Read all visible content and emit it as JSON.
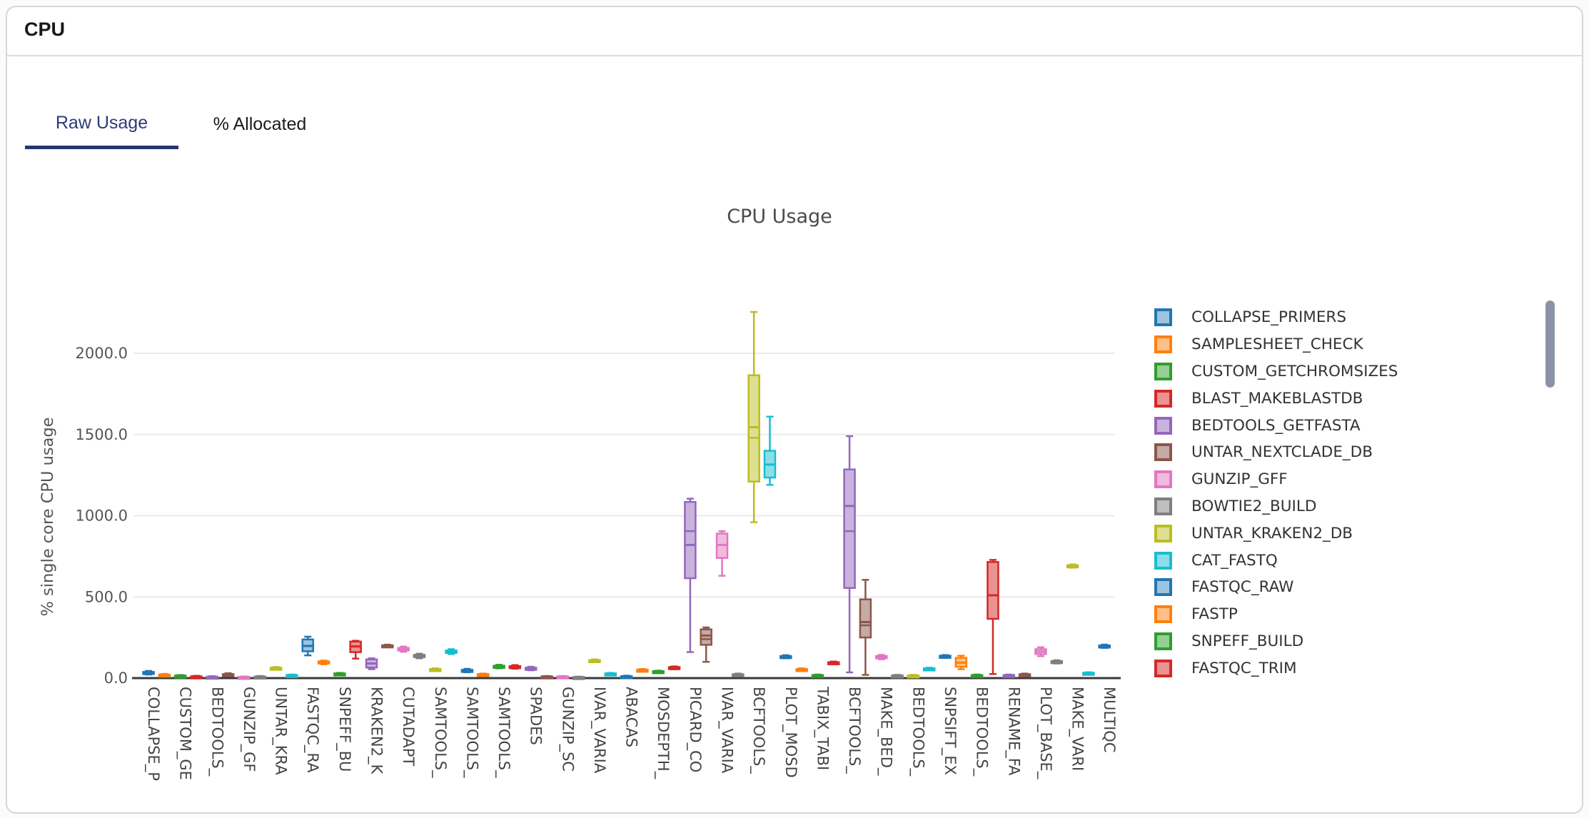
{
  "header": {
    "title": "CPU"
  },
  "tabs": [
    {
      "label": "Raw Usage",
      "active": true
    },
    {
      "label": "% Allocated",
      "active": false
    }
  ],
  "ui_colors": {
    "active_tab": "#2e3b76",
    "tab_underline": "#27356e",
    "scrollbar_thumb": "#8a93a6",
    "grid_line": "#eaeaea",
    "axis_line": "#3a3a3a",
    "tick_text": "#555555",
    "x_tick_text": "#444444"
  },
  "chart_data": {
    "type": "box",
    "title": "CPU Usage",
    "ylabel": "% single core CPU usage",
    "xlabel": "",
    "ylim": [
      0,
      2350
    ],
    "grid": true,
    "legend_position": "right",
    "ytick_values": [
      0,
      500,
      1000,
      1500,
      2000
    ],
    "ytick_labels": [
      "0.0",
      "500.0",
      "1000.0",
      "1500.0",
      "2000.0"
    ],
    "categories": [
      "COLLAPSE_P",
      "CUSTOM_GE",
      "BEDTOOLS_",
      "GUNZIP_GF",
      "UNTAR_KRA",
      "FASTQC_RA",
      "SNPEFF_BU",
      "KRAKEN2_K",
      "CUTADAPT",
      "SAMTOOLS_",
      "SAMTOOLS_",
      "SAMTOOLS_",
      "SPADES",
      "GUNZIP_SC",
      "IVAR_VARIA",
      "ABACAS",
      "MOSDEPTH_",
      "PICARD_CO",
      "IVAR_VARIA",
      "BCFTOOLS_",
      "PLOT_MOSD",
      "TABIX_TABI",
      "BCFTOOLS_",
      "MAKE_BED_",
      "BEDTOOLS_",
      "SNPSIFT_EX",
      "BEDTOOLS_",
      "RENAME_FA",
      "PLOT_BASE_",
      "MAKE_VARI",
      "MULTIQC"
    ],
    "palette": {
      "blue": {
        "stroke": "#1f77b4",
        "fill": "#9fc3dd"
      },
      "orange": {
        "stroke": "#ff7f0e",
        "fill": "#ffbf86"
      },
      "green": {
        "stroke": "#2ca02c",
        "fill": "#95cf95"
      },
      "red": {
        "stroke": "#d62728",
        "fill": "#ea9393"
      },
      "purple": {
        "stroke": "#9467bd",
        "fill": "#c9b3de"
      },
      "brown": {
        "stroke": "#8c564b",
        "fill": "#c5aaa5"
      },
      "pink": {
        "stroke": "#e377c2",
        "fill": "#f1bbe0"
      },
      "gray": {
        "stroke": "#7f7f7f",
        "fill": "#bfbfbf"
      },
      "olive": {
        "stroke": "#bcbd22",
        "fill": "#dde090"
      },
      "cyan": {
        "stroke": "#17becf",
        "fill": "#8bdee7"
      }
    },
    "color_cycle": [
      "blue",
      "orange",
      "green",
      "red",
      "purple",
      "brown",
      "pink",
      "gray",
      "olive",
      "cyan"
    ],
    "boxes": [
      {
        "v": [
          22,
          27,
          32,
          38,
          44
        ]
      },
      {
        "v": [
          12,
          15,
          18,
          22,
          26
        ]
      },
      {
        "v": [
          8,
          10,
          13,
          16,
          19
        ]
      },
      {
        "v": [
          4,
          6,
          8,
          11,
          14
        ]
      },
      {
        "v": [
          3,
          5,
          7,
          9,
          12
        ]
      },
      {
        "v": [
          12,
          16,
          20,
          25,
          30
        ]
      },
      {
        "v": [
          3,
          4,
          6,
          8,
          10
        ]
      },
      {
        "v": [
          4,
          6,
          8,
          10,
          13
        ]
      },
      {
        "v": [
          52,
          56,
          60,
          64,
          68
        ]
      },
      {
        "v": [
          10,
          13,
          16,
          19,
          22
        ]
      },
      {
        "v": [
          140,
          165,
          198,
          238,
          255
        ]
      },
      {
        "v": [
          85,
          90,
          97,
          103,
          108
        ]
      },
      {
        "v": [
          20,
          23,
          26,
          29,
          32
        ]
      },
      {
        "v": [
          120,
          160,
          195,
          225,
          230
        ]
      },
      {
        "v": [
          55,
          65,
          90,
          115,
          122
        ]
      },
      {
        "v": [
          190,
          194,
          198,
          202,
          206
        ]
      },
      {
        "v": [
          162,
          170,
          178,
          186,
          194
        ]
      },
      {
        "v": [
          122,
          129,
          136,
          143,
          150
        ]
      },
      {
        "v": [
          44,
          48,
          52,
          56,
          60
        ]
      },
      {
        "v": [
          148,
          155,
          162,
          170,
          178
        ]
      },
      {
        "v": [
          36,
          41,
          46,
          51,
          57
        ]
      },
      {
        "v": [
          15,
          18,
          21,
          25,
          28
        ]
      },
      {
        "v": [
          60,
          65,
          70,
          76,
          82
        ]
      },
      {
        "v": [
          58,
          63,
          68,
          74,
          80
        ]
      },
      {
        "v": [
          48,
          53,
          58,
          64,
          70
        ]
      },
      {
        "v": [
          5,
          7,
          9,
          11,
          13
        ]
      },
      {
        "v": [
          5,
          7,
          9,
          11,
          13
        ]
      },
      {
        "v": [
          3,
          4,
          5,
          7,
          9
        ]
      },
      {
        "v": [
          98,
          102,
          106,
          111,
          115
        ]
      },
      {
        "v": [
          20,
          23,
          26,
          29,
          32
        ]
      },
      {
        "v": [
          6,
          8,
          10,
          12,
          15
        ]
      },
      {
        "v": [
          40,
          44,
          48,
          52,
          56
        ]
      },
      {
        "v": [
          32,
          36,
          39,
          43,
          46
        ]
      },
      {
        "v": [
          55,
          60,
          64,
          68,
          72
        ]
      },
      {
        "v": [
          160,
          615,
          820,
          1085,
          1105
        ],
        "m2": 905
      },
      {
        "v": [
          100,
          205,
          262,
          300,
          312
        ],
        "m2": 240
      },
      {
        "v": [
          630,
          740,
          820,
          890,
          905
        ]
      },
      {
        "v": [
          12,
          16,
          20,
          24,
          28
        ]
      },
      {
        "v": [
          960,
          1210,
          1545,
          1865,
          2255
        ],
        "m2": 1480
      },
      {
        "v": [
          1190,
          1235,
          1315,
          1400,
          1610
        ]
      },
      {
        "v": [
          122,
          126,
          131,
          136,
          141
        ]
      },
      {
        "v": [
          45,
          48,
          52,
          56,
          60
        ]
      },
      {
        "v": [
          10,
          13,
          16,
          19,
          22
        ]
      },
      {
        "v": [
          86,
          90,
          94,
          98,
          102
        ]
      },
      {
        "v": [
          35,
          555,
          1060,
          1285,
          1490
        ],
        "m2": 905
      },
      {
        "v": [
          20,
          250,
          345,
          485,
          605
        ],
        "m2": 325
      },
      {
        "v": [
          116,
          122,
          129,
          136,
          143
        ]
      },
      {
        "v": [
          8,
          11,
          14,
          17,
          20
        ]
      },
      {
        "v": [
          8,
          11,
          14,
          17,
          20
        ]
      },
      {
        "v": [
          48,
          52,
          56,
          60,
          64
        ]
      },
      {
        "v": [
          124,
          128,
          133,
          138,
          142
        ]
      },
      {
        "v": [
          55,
          70,
          95,
          125,
          138
        ]
      },
      {
        "v": [
          10,
          13,
          16,
          19,
          22
        ]
      },
      {
        "v": [
          25,
          365,
          510,
          715,
          728
        ]
      },
      {
        "v": [
          10,
          13,
          16,
          19,
          22
        ]
      },
      {
        "v": [
          14,
          17,
          20,
          24,
          28
        ]
      },
      {
        "v": [
          135,
          148,
          163,
          178,
          190
        ]
      },
      {
        "v": [
          90,
          95,
          100,
          105,
          110
        ]
      },
      {
        "v": [
          680,
          685,
          690,
          695,
          700
        ]
      },
      {
        "v": [
          24,
          27,
          30,
          33,
          36
        ]
      },
      {
        "v": [
          186,
          191,
          196,
          201,
          206
        ]
      }
    ],
    "legend": [
      {
        "label": "COLLAPSE_PRIMERS",
        "color": "blue"
      },
      {
        "label": "SAMPLESHEET_CHECK",
        "color": "orange"
      },
      {
        "label": "CUSTOM_GETCHROMSIZES",
        "color": "green"
      },
      {
        "label": "BLAST_MAKEBLASTDB",
        "color": "red"
      },
      {
        "label": "BEDTOOLS_GETFASTA",
        "color": "purple"
      },
      {
        "label": "UNTAR_NEXTCLADE_DB",
        "color": "brown"
      },
      {
        "label": "GUNZIP_GFF",
        "color": "pink"
      },
      {
        "label": "BOWTIE2_BUILD",
        "color": "gray"
      },
      {
        "label": "UNTAR_KRAKEN2_DB",
        "color": "olive"
      },
      {
        "label": "CAT_FASTQ",
        "color": "cyan"
      },
      {
        "label": "FASTQC_RAW",
        "color": "blue"
      },
      {
        "label": "FASTP",
        "color": "orange"
      },
      {
        "label": "SNPEFF_BUILD",
        "color": "green"
      },
      {
        "label": "FASTQC_TRIM",
        "color": "red"
      }
    ]
  }
}
